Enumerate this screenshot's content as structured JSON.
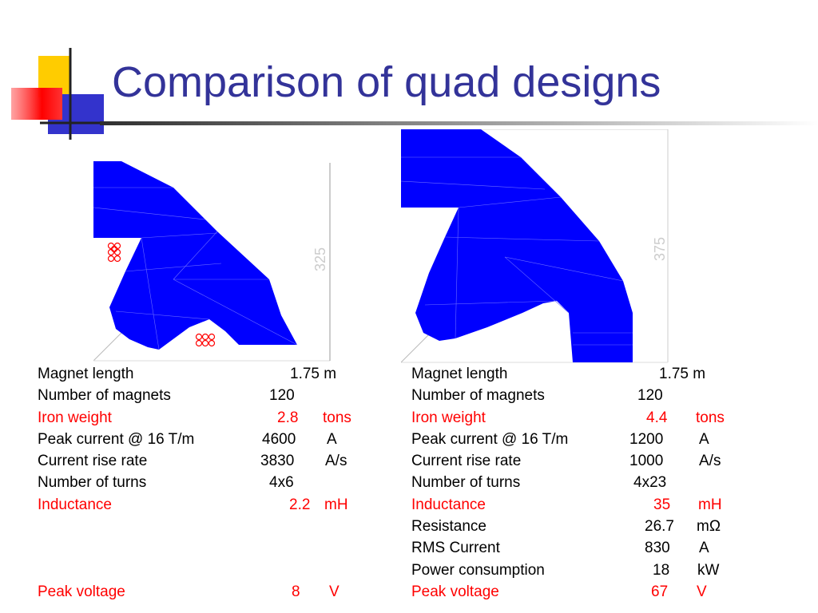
{
  "title": "Comparison of quad designs",
  "left": {
    "dimension_label": "325",
    "rows": [
      {
        "label": "Magnet length",
        "value": "1.75 m",
        "unit": "",
        "highlight": false
      },
      {
        "label": "Number of magnets",
        "value": "120",
        "unit": "",
        "highlight": false
      },
      {
        "label": "Iron weight",
        "value": "2.8",
        "unit": "tons",
        "highlight": true
      },
      {
        "label": "Peak current @ 16 T/m",
        "value": "4600",
        "unit": "A",
        "highlight": false
      },
      {
        "label": "Current rise rate",
        "value": "3830",
        "unit": "A/s",
        "highlight": false
      },
      {
        "label": "Number of turns",
        "value": "4x6",
        "unit": "",
        "highlight": false
      },
      {
        "label": "Inductance",
        "value": "2.2",
        "unit": "mH",
        "highlight": true
      },
      {
        "label": "",
        "value": "",
        "unit": "",
        "highlight": false
      },
      {
        "label": "",
        "value": "",
        "unit": "",
        "highlight": false
      },
      {
        "label": "",
        "value": "",
        "unit": "",
        "highlight": false
      },
      {
        "label": "Peak voltage",
        "value": "8",
        "unit": "V",
        "highlight": true
      }
    ]
  },
  "right": {
    "dimension_label": "375",
    "rows": [
      {
        "label": "Magnet length",
        "value": "1.75 m",
        "unit": "",
        "highlight": false
      },
      {
        "label": "Number of magnets",
        "value": "120",
        "unit": "",
        "highlight": false
      },
      {
        "label": "Iron weight",
        "value": "4.4",
        "unit": "tons",
        "highlight": true
      },
      {
        "label": "Peak current @ 16 T/m",
        "value": "1200",
        "unit": "A",
        "highlight": false
      },
      {
        "label": "Current rise rate",
        "value": "1000",
        "unit": "A/s",
        "highlight": false
      },
      {
        "label": "Number of turns",
        "value": "4x23",
        "unit": "",
        "highlight": false
      },
      {
        "label": "Inductance",
        "value": "35",
        "unit": "mH",
        "highlight": true
      },
      {
        "label": "Resistance",
        "value": "26.7",
        "unit": "mΩ",
        "highlight": false
      },
      {
        "label": "RMS Current",
        "value": "830",
        "unit": "A",
        "highlight": false
      },
      {
        "label": "Power consumption",
        "value": "18",
        "unit": "kW",
        "highlight": false
      },
      {
        "label": "Peak voltage",
        "value": "67",
        "unit": "V",
        "highlight": true
      }
    ]
  },
  "colors": {
    "title": "#333399",
    "highlight": "#ff0000",
    "iron": "#0000ff",
    "coil": "#ff0000"
  }
}
